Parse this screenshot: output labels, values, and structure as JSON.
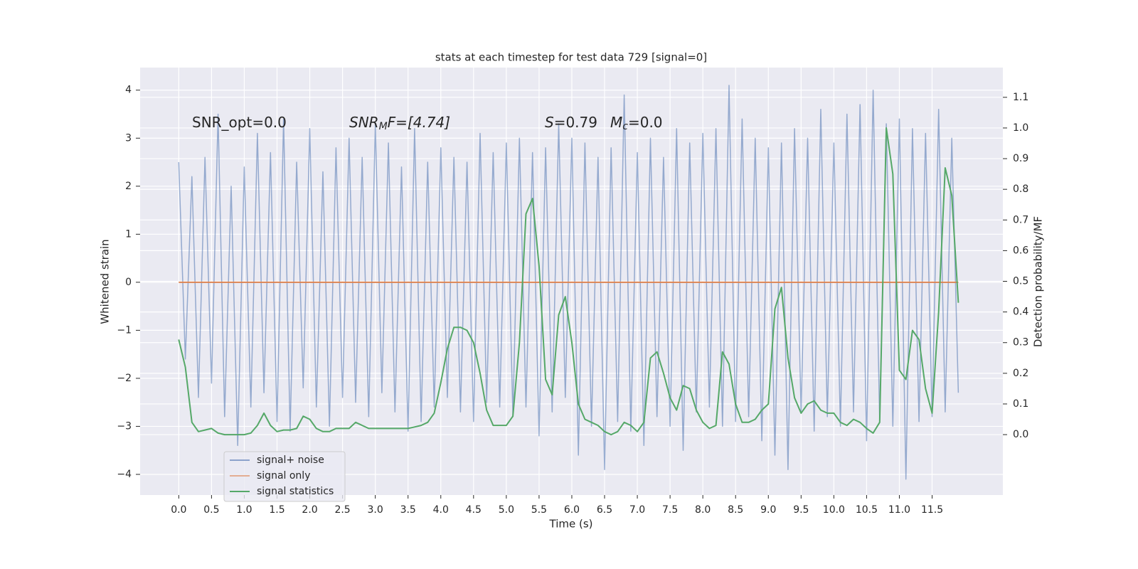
{
  "chart_data": {
    "type": "line",
    "title": "stats at each timestep for test data 729 [signal=0]",
    "x_label": "Time (s)",
    "y_label": "Whitened strain",
    "y2_label": "Detection probability/MF",
    "annotations": [
      [
        "SNR_opt=0.0"
      ],
      [
        "SNR",
        "M",
        "F=[4.74]"
      ],
      [
        "S",
        "=0.79"
      ],
      [
        "M",
        "c",
        "=0.0"
      ]
    ],
    "x": [
      0.0,
      0.1,
      0.2,
      0.3,
      0.4,
      0.5,
      0.6,
      0.7,
      0.8,
      0.9,
      1.0,
      1.1,
      1.2,
      1.3,
      1.4,
      1.5,
      1.6,
      1.7,
      1.8,
      1.9,
      2.0,
      2.1,
      2.2,
      2.3,
      2.4,
      2.5,
      2.6,
      2.7,
      2.8,
      2.9,
      3.0,
      3.1,
      3.2,
      3.3,
      3.4,
      3.5,
      3.6,
      3.7,
      3.8,
      3.9,
      4.0,
      4.1,
      4.2,
      4.3,
      4.4,
      4.5,
      4.6,
      4.7,
      4.8,
      4.9,
      5.0,
      5.1,
      5.2,
      5.3,
      5.4,
      5.5,
      5.6,
      5.7,
      5.8,
      5.9,
      6.0,
      6.1,
      6.2,
      6.3,
      6.4,
      6.5,
      6.6,
      6.7,
      6.8,
      6.9,
      7.0,
      7.1,
      7.2,
      7.3,
      7.4,
      7.5,
      7.6,
      7.7,
      7.8,
      7.9,
      8.0,
      8.1,
      8.2,
      8.3,
      8.4,
      8.5,
      8.6,
      8.7,
      8.8,
      8.9,
      9.0,
      9.1,
      9.2,
      9.3,
      9.4,
      9.5,
      9.6,
      9.7,
      9.8,
      9.9,
      10.0,
      10.1,
      10.2,
      10.3,
      10.4,
      10.5,
      10.6,
      10.7,
      10.8,
      10.9,
      11.0,
      11.1,
      11.2,
      11.3,
      11.4,
      11.5,
      11.6,
      11.7,
      11.8,
      11.9
    ],
    "series": [
      {
        "name": "signal+ noise",
        "color": "#4c72b0",
        "values": [
          2.5,
          -1.6,
          2.2,
          -2.4,
          2.6,
          -2.1,
          3.5,
          -2.8,
          2.0,
          -3.4,
          2.4,
          -2.6,
          3.1,
          -2.3,
          2.7,
          -2.9,
          3.4,
          -3.1,
          2.5,
          -2.2,
          3.2,
          -2.6,
          2.3,
          -3.0,
          2.8,
          -2.4,
          3.0,
          -2.5,
          2.6,
          -2.8,
          3.3,
          -2.3,
          2.9,
          -2.7,
          2.4,
          -3.1,
          3.2,
          -2.9,
          2.5,
          -2.6,
          2.8,
          -2.4,
          2.6,
          -2.7,
          2.5,
          -2.9,
          3.1,
          -2.5,
          2.7,
          -2.6,
          2.9,
          -2.8,
          3.0,
          -2.6,
          2.7,
          -3.2,
          2.8,
          -2.7,
          3.3,
          -2.4,
          3.0,
          -3.6,
          2.9,
          -3.0,
          2.6,
          -3.9,
          2.8,
          -2.9,
          3.9,
          -3.1,
          2.7,
          -3.4,
          3.0,
          -2.8,
          2.6,
          -3.0,
          3.2,
          -3.5,
          2.9,
          -2.7,
          3.1,
          -2.6,
          3.2,
          -3.0,
          4.1,
          -2.9,
          3.4,
          -2.8,
          3.0,
          -3.3,
          2.8,
          -3.6,
          2.9,
          -3.9,
          3.2,
          -2.7,
          3.0,
          -3.1,
          3.6,
          -2.8,
          2.9,
          -3.0,
          3.5,
          -2.7,
          3.7,
          -3.3,
          4.0,
          -2.9,
          3.3,
          -3.0,
          3.4,
          -4.1,
          3.2,
          -2.9,
          3.1,
          -2.8,
          3.6,
          -2.7,
          3.0,
          -2.3
        ]
      },
      {
        "name": "signal only",
        "color": "#dd8452",
        "values": [
          0,
          0,
          0,
          0,
          0,
          0,
          0,
          0,
          0,
          0,
          0,
          0,
          0,
          0,
          0,
          0,
          0,
          0,
          0,
          0,
          0,
          0,
          0,
          0,
          0,
          0,
          0,
          0,
          0,
          0,
          0,
          0,
          0,
          0,
          0,
          0,
          0,
          0,
          0,
          0,
          0,
          0,
          0,
          0,
          0,
          0,
          0,
          0,
          0,
          0,
          0,
          0,
          0,
          0,
          0,
          0,
          0,
          0,
          0,
          0,
          0,
          0,
          0,
          0,
          0,
          0,
          0,
          0,
          0,
          0,
          0,
          0,
          0,
          0,
          0,
          0,
          0,
          0,
          0,
          0,
          0,
          0,
          0,
          0,
          0,
          0,
          0,
          0,
          0,
          0,
          0,
          0,
          0,
          0,
          0,
          0,
          0,
          0,
          0,
          0,
          0,
          0,
          0,
          0,
          0,
          0,
          0,
          0,
          0,
          0,
          0,
          0,
          0,
          0,
          0,
          0,
          0,
          0,
          0,
          0
        ]
      },
      {
        "name": "signal statistics",
        "color": "#55a868",
        "axis": "y2",
        "values": [
          0.31,
          0.22,
          0.04,
          0.01,
          0.015,
          0.02,
          0.005,
          0.0,
          0.0,
          0.0,
          0.0,
          0.005,
          0.03,
          0.07,
          0.03,
          0.01,
          0.015,
          0.015,
          0.02,
          0.06,
          0.05,
          0.02,
          0.01,
          0.01,
          0.02,
          0.02,
          0.02,
          0.04,
          0.03,
          0.02,
          0.02,
          0.02,
          0.02,
          0.02,
          0.02,
          0.02,
          0.025,
          0.03,
          0.04,
          0.07,
          0.17,
          0.28,
          0.35,
          0.35,
          0.34,
          0.3,
          0.2,
          0.08,
          0.03,
          0.03,
          0.03,
          0.06,
          0.3,
          0.72,
          0.77,
          0.55,
          0.18,
          0.13,
          0.39,
          0.45,
          0.3,
          0.1,
          0.05,
          0.04,
          0.03,
          0.01,
          0.0,
          0.01,
          0.04,
          0.03,
          0.01,
          0.04,
          0.25,
          0.27,
          0.2,
          0.12,
          0.08,
          0.16,
          0.15,
          0.08,
          0.04,
          0.02,
          0.03,
          0.27,
          0.23,
          0.1,
          0.04,
          0.04,
          0.05,
          0.08,
          0.1,
          0.41,
          0.48,
          0.25,
          0.12,
          0.07,
          0.1,
          0.11,
          0.08,
          0.07,
          0.07,
          0.04,
          0.03,
          0.05,
          0.04,
          0.02,
          0.005,
          0.04,
          1.0,
          0.85,
          0.21,
          0.18,
          0.34,
          0.31,
          0.15,
          0.07,
          0.4,
          0.87,
          0.78,
          0.43
        ]
      }
    ],
    "xlim": [
      -0.59,
      12.58
    ],
    "xticks": [
      {
        "value": 0,
        "label": "0.0"
      },
      0.5,
      {
        "value": 1,
        "label": "1.0"
      },
      1.5,
      {
        "value": 2,
        "label": "2.0"
      },
      2.5,
      {
        "value": 3,
        "label": "3.0"
      },
      3.5,
      {
        "value": 4,
        "label": "4.0"
      },
      4.5,
      {
        "value": 5,
        "label": "5.0"
      },
      5.5,
      {
        "value": 6,
        "label": "6.0"
      },
      6.5,
      {
        "value": 7,
        "label": "7.0"
      },
      7.5,
      {
        "value": 8,
        "label": "8.0"
      },
      8.5,
      {
        "value": 9,
        "label": "9.0"
      },
      9.5,
      {
        "value": 10,
        "label": "10.0"
      },
      10.5,
      {
        "value": 11,
        "label": "11.0"
      },
      11.5
    ],
    "ylim": [
      -4.43,
      4.47
    ],
    "yticks": [
      {
        "value": -4,
        "label": "−4"
      },
      {
        "value": -3,
        "label": "−3"
      },
      {
        "value": -2,
        "label": "−2"
      },
      {
        "value": -1,
        "label": "−1"
      },
      0,
      1,
      2,
      3,
      4
    ],
    "y2lim": [
      -0.197,
      1.197
    ],
    "y2ticks": [
      {
        "value": 0,
        "label": "0.0"
      },
      0.1,
      0.2,
      0.3,
      0.4,
      0.5,
      0.6,
      0.7,
      0.8,
      0.9,
      {
        "value": 1,
        "label": "1.0"
      },
      1.1
    ],
    "grid": true,
    "legend": "lower left"
  }
}
